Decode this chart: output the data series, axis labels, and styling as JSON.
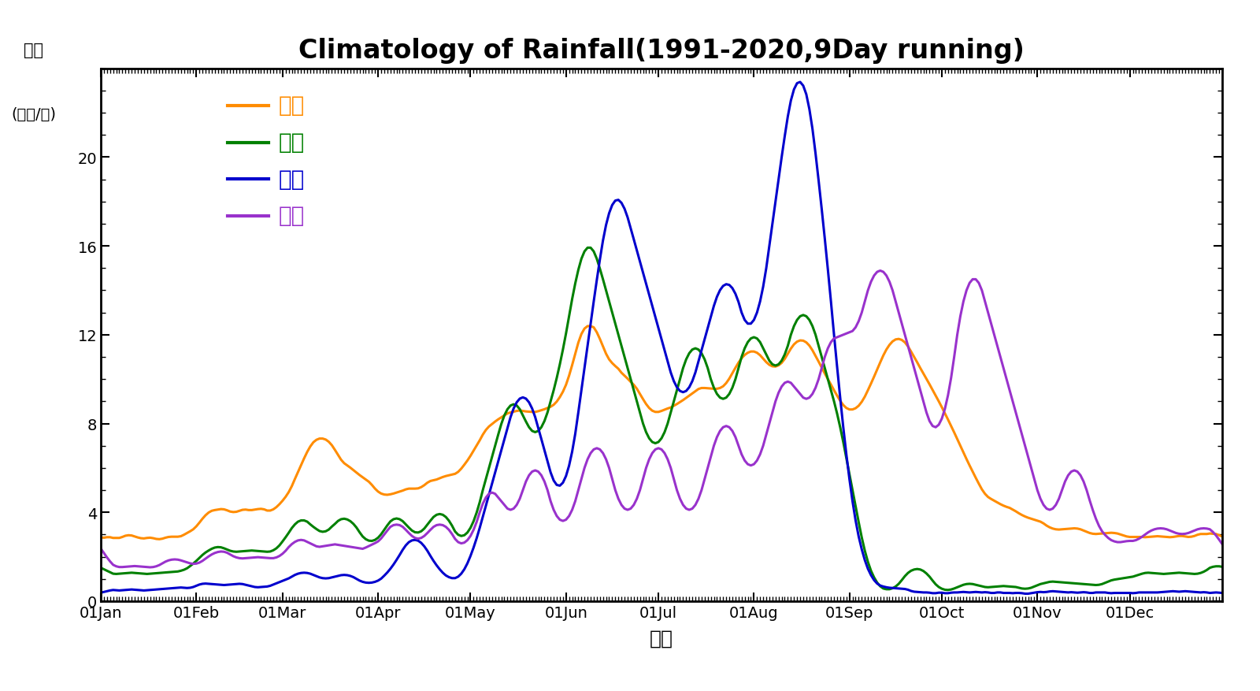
{
  "title": "Climatology of Rainfall(1991-2020,9Day running)",
  "ylabel_line1": "雨量",
  "ylabel_line2": "(毫米/日)",
  "xlabel": "時間",
  "cities": [
    "台北",
    "台中",
    "高雄",
    "花蓮"
  ],
  "colors": [
    "#FF8C00",
    "#008000",
    "#0000CD",
    "#9932CC"
  ],
  "yticks": [
    0,
    4,
    8,
    12,
    16,
    20
  ],
  "ylim": [
    0,
    24
  ],
  "months": [
    "01Jan",
    "01Feb",
    "01Mar",
    "01Apr",
    "01May",
    "01Jun",
    "01Jul",
    "01Aug",
    "01Sep",
    "01Oct",
    "01Nov",
    "01Dec"
  ],
  "background": "#FFFFFF",
  "title_fontsize": 24,
  "label_fontsize": 15,
  "tick_fontsize": 14,
  "legend_fontsize": 20,
  "linewidth": 2.2
}
